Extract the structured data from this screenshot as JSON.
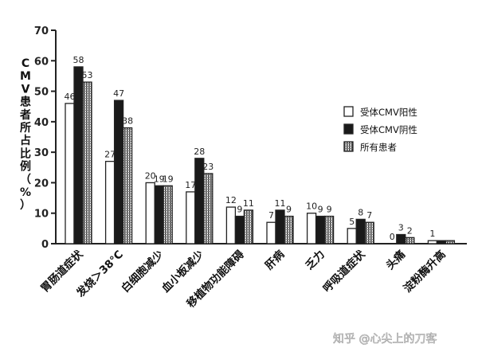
{
  "chart_data": {
    "type": "bar",
    "ylabel_chars": [
      "C",
      "M",
      "V",
      "患",
      "者",
      "所",
      "占",
      "比",
      "例",
      "（",
      "%",
      "）"
    ],
    "ylim": [
      0,
      70
    ],
    "yticks": [
      "0",
      "10",
      "20",
      "30",
      "40",
      "50",
      "60",
      "70"
    ],
    "categories": [
      "胃肠道症状",
      "发烧＞38℃",
      "白细胞减少",
      "血小板减少",
      "移植物功能障碍",
      "肝病",
      "乏力",
      "呼吸道症状",
      "头痛",
      "淀粉酶升高"
    ],
    "series": [
      {
        "name": "受体CMV阳性",
        "values": [
          46,
          27,
          20,
          17,
          12,
          7,
          10,
          5,
          0,
          1
        ],
        "labels": [
          "46",
          "27",
          "20",
          "17",
          "12",
          "7",
          "10",
          "5",
          "0",
          "1"
        ],
        "color": "#ffffff"
      },
      {
        "name": "受体CMV阴性",
        "values": [
          58,
          47,
          19,
          28,
          9,
          11,
          9,
          8,
          3,
          1
        ],
        "labels": [
          "58",
          "47",
          "19",
          "28",
          "9",
          "11",
          "9",
          "8",
          "3",
          ""
        ],
        "color": "#1a1a1a"
      },
      {
        "name": "所有患者",
        "values": [
          53,
          38,
          19,
          23,
          11,
          9,
          9,
          7,
          2,
          1
        ],
        "labels": [
          "53",
          "38",
          "19",
          "23",
          "11",
          "9",
          "9",
          "7",
          "2",
          ""
        ],
        "color": "#9a9a9a"
      }
    ],
    "legend_position": "right",
    "grid": false
  },
  "watermark": "知乎 @心尖上的刀客"
}
